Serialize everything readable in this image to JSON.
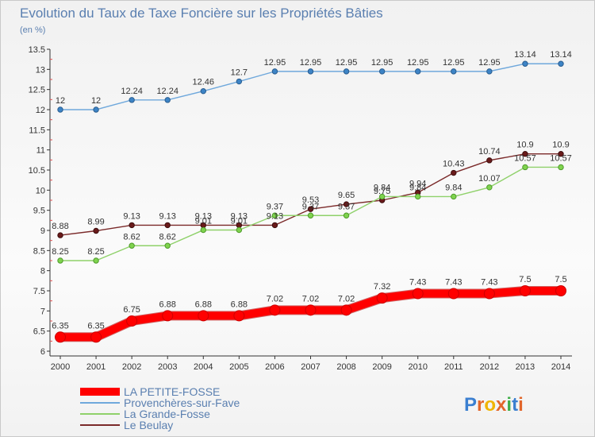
{
  "title": "Evolution du Taux de Taxe Foncière sur les Propriétés Bâties",
  "subtitle": "(en %)",
  "logo": {
    "text": "Proxiti"
  },
  "chart_data": {
    "type": "line",
    "title": "Evolution du Taux de Taxe Foncière sur les Propriétés Bâties",
    "ylabel": "(en %)",
    "xlabel": "",
    "x": [
      "2000",
      "2001",
      "2002",
      "2003",
      "2004",
      "2005",
      "2006",
      "2007",
      "2008",
      "2009",
      "2010",
      "2011",
      "2012",
      "2013",
      "2014"
    ],
    "ylim": [
      6,
      13.5
    ],
    "yticks": [
      6,
      6.5,
      7,
      7.5,
      8,
      8.5,
      9,
      9.5,
      10,
      10.5,
      11,
      11.5,
      12,
      12.5,
      13,
      13.5
    ],
    "ytick_labels": [
      "6",
      "6.5",
      "7",
      "7.5",
      "8",
      "8.5",
      "9",
      "9.5",
      "10",
      "10.5",
      "11",
      "11.5",
      "12",
      "12.5",
      "13",
      "13.5"
    ],
    "grid": false,
    "legend_position": "bottom-left",
    "series": [
      {
        "name": "LA PETITE-FOSSE",
        "color": "#ff0000",
        "values": [
          6.35,
          6.35,
          6.75,
          6.88,
          6.88,
          6.88,
          7.02,
          7.02,
          7.02,
          7.32,
          7.43,
          7.43,
          7.43,
          7.5,
          7.5
        ],
        "labels": [
          "6.35",
          "6.35",
          "6.75",
          "6.88",
          "6.88",
          "6.88",
          "7.02",
          "7.02",
          "7.02",
          "7.32",
          "7.43",
          "7.43",
          "7.43",
          "7.5",
          "7.5"
        ]
      },
      {
        "name": "Provenchères-sur-Fave",
        "color": "#6fa8dc",
        "values": [
          12,
          12,
          12.24,
          12.24,
          12.46,
          12.7,
          12.95,
          12.95,
          12.95,
          12.95,
          12.95,
          12.95,
          12.95,
          13.14,
          13.14
        ],
        "labels": [
          "12",
          "12",
          "12.24",
          "12.24",
          "12.46",
          "12.7",
          "12.95",
          "12.95",
          "12.95",
          "12.95",
          "12.95",
          "12.95",
          "12.95",
          "13.14",
          "13.14"
        ]
      },
      {
        "name": "La Grande-Fosse",
        "color": "#8fd16a",
        "values": [
          8.25,
          8.25,
          8.62,
          8.62,
          9.01,
          9.01,
          9.37,
          9.37,
          9.37,
          9.84,
          9.84,
          9.84,
          10.07,
          10.57,
          10.57
        ],
        "labels": [
          "8.25",
          "8.25",
          "8.62",
          "8.62",
          "9.01",
          "9.01",
          "9.37",
          "9.37",
          "9.37",
          "9.84",
          "9.84",
          "9.84",
          "10.07",
          "10.57",
          "10.57"
        ]
      },
      {
        "name": "Le Beulay",
        "color": "#7b2a2a",
        "values": [
          8.88,
          8.99,
          9.13,
          9.13,
          9.13,
          9.13,
          9.13,
          9.53,
          9.65,
          9.75,
          9.94,
          10.43,
          10.74,
          10.9,
          10.9
        ],
        "labels": [
          "8.88",
          "8.99",
          "9.13",
          "9.13",
          "9.13",
          "9.13",
          "9.13",
          "9.53",
          "9.65",
          "9.75",
          "9.94",
          "10.43",
          "10.74",
          "10.9",
          "10.9"
        ]
      }
    ]
  }
}
